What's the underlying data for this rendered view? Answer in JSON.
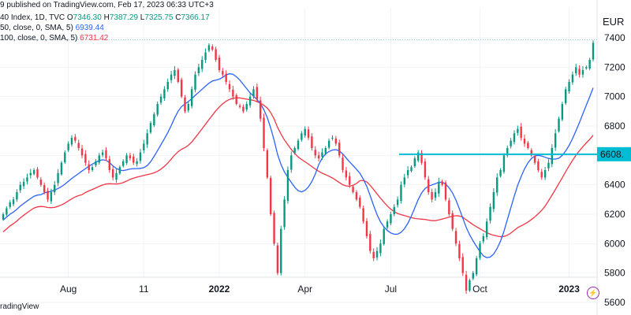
{
  "header": {
    "published": "9 published on TradingView.com, Feb 17, 2023 06:33 UTC+3",
    "symbol": "40 Index, 1D, TVC",
    "ohlc": {
      "o_label": "O",
      "o": "7346.30",
      "h_label": "H",
      "h": "7387.29",
      "l_label": "L",
      "l": "7325.75",
      "c_label": "C",
      "c": "7366.17"
    },
    "sma50": {
      "label": "50, close, 0, SMA, 5)",
      "value": "6939.44"
    },
    "sma100": {
      "label": "100, close, 0, SMA, 5)",
      "value": "6731.42"
    }
  },
  "currency": "EUR",
  "footer_brand": "radingView",
  "flash_icon": "lightning-icon",
  "colors": {
    "up": "#089981",
    "down": "#f23645",
    "sma50": "#2962ff",
    "sma100": "#f23645",
    "level": "#00bcd4",
    "label_bg": "#00bcd4",
    "grid": "#f0f3fa"
  },
  "chart_data": {
    "type": "candlestick",
    "ylim": [
      5450,
      7500
    ],
    "y_ticks": [
      7400,
      7200,
      7000,
      6800,
      6600,
      6400,
      6200,
      6000,
      5800,
      5600
    ],
    "highlighted_level": {
      "value": 6608,
      "label": "6608."
    },
    "x_ticks": [
      {
        "label": "Aug",
        "index": 19,
        "bold": false
      },
      {
        "label": "11",
        "index": 41,
        "bold": false
      },
      {
        "label": "2022",
        "index": 63,
        "bold": true
      },
      {
        "label": "Apr",
        "index": 88,
        "bold": false
      },
      {
        "label": "Jul",
        "index": 113,
        "bold": false
      },
      {
        "label": "Oct",
        "index": 139,
        "bold": false
      },
      {
        "label": "2023",
        "index": 165,
        "bold": true
      }
    ],
    "closes": [
      6200,
      6240,
      6280,
      6300,
      6350,
      6400,
      6420,
      6450,
      6480,
      6500,
      6450,
      6400,
      6350,
      6300,
      6350,
      6400,
      6480,
      6550,
      6620,
      6680,
      6720,
      6700,
      6650,
      6600,
      6550,
      6500,
      6520,
      6560,
      6600,
      6620,
      6580,
      6500,
      6450,
      6480,
      6520,
      6560,
      6600,
      6580,
      6550,
      6560,
      6620,
      6680,
      6750,
      6820,
      6880,
      6950,
      7000,
      7050,
      7100,
      7150,
      7180,
      7100,
      7000,
      6900,
      6950,
      7050,
      7150,
      7200,
      7250,
      7300,
      7350,
      7320,
      7250,
      7180,
      7150,
      7100,
      7050,
      7000,
      6950,
      6930,
      6900,
      6950,
      7000,
      7050,
      6980,
      6850,
      6650,
      6450,
      6200,
      6000,
      5800,
      6100,
      6300,
      6500,
      6600,
      6650,
      6700,
      6750,
      6780,
      6720,
      6650,
      6600,
      6580,
      6620,
      6650,
      6700,
      6720,
      6680,
      6600,
      6500,
      6450,
      6400,
      6350,
      6300,
      6250,
      6150,
      6050,
      5950,
      5900,
      5950,
      6000,
      6100,
      6150,
      6200,
      6250,
      6300,
      6400,
      6450,
      6500,
      6520,
      6580,
      6620,
      6550,
      6450,
      6350,
      6300,
      6350,
      6420,
      6400,
      6300,
      6200,
      6100,
      6000,
      5900,
      5800,
      5680,
      5750,
      5800,
      5900,
      6000,
      6050,
      6150,
      6250,
      6350,
      6450,
      6500,
      6600,
      6650,
      6700,
      6750,
      6780,
      6720,
      6680,
      6650,
      6600,
      6550,
      6500,
      6450,
      6500,
      6550,
      6650,
      6750,
      6850,
      6950,
      7050,
      7100,
      7150,
      7200,
      7150,
      7180,
      7200,
      7250,
      7366
    ]
  }
}
